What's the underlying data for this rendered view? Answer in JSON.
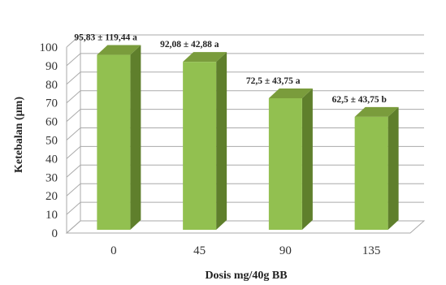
{
  "chart_data": {
    "type": "bar",
    "title": "",
    "xlabel": "Dosis mg/40g BB",
    "ylabel": "Ketebalan (µm)",
    "categories": [
      "0",
      "45",
      "90",
      "135"
    ],
    "values": [
      95.83,
      92.08,
      72.5,
      62.5
    ],
    "annotations": [
      "95,83 ± 119,44 a",
      "92,08 ± 42,88 a",
      "72,5 ± 43,75 a",
      "62,5 ± 43,75 b"
    ],
    "ylim": [
      0,
      100
    ],
    "yticks": [
      "0",
      "10",
      "20",
      "30",
      "40",
      "50",
      "60",
      "70",
      "80",
      "90",
      "100"
    ],
    "grid": true,
    "legend": "none",
    "colors": {
      "bar_front": "#92c050",
      "bar_side": "#5f7f2c",
      "bar_top": "#7a9c3c",
      "grid": "#aaaaaa",
      "wall": "#ffffff"
    }
  }
}
